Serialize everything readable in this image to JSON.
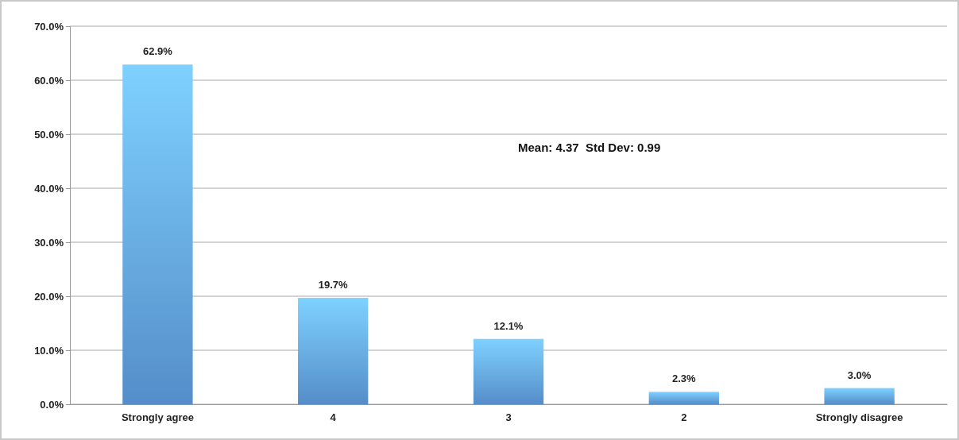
{
  "chart_data": {
    "type": "bar",
    "categories": [
      "Strongly agree",
      "4",
      "3",
      "2",
      "Strongly disagree"
    ],
    "values": [
      62.9,
      19.7,
      12.1,
      2.3,
      3.0
    ],
    "value_labels": [
      "62.9%",
      "19.7%",
      "12.1%",
      "2.3%",
      "3.0%"
    ],
    "color": "#5f9de0",
    "ylim": [
      0,
      70
    ],
    "yticks": [
      {
        "value": 0,
        "label": "0.0%"
      },
      {
        "value": 10,
        "label": "10.0%"
      },
      {
        "value": 20,
        "label": "20.0%"
      },
      {
        "value": 30,
        "label": "30.0%"
      },
      {
        "value": 40,
        "label": "40.0%"
      },
      {
        "value": 50,
        "label": "50.0%"
      },
      {
        "value": 60,
        "label": "60.0%"
      },
      {
        "value": 70,
        "label": "70.0%"
      }
    ],
    "grid": "y",
    "annotations": [
      "Mean: 4.37  Std Dev: 0.99"
    ]
  }
}
